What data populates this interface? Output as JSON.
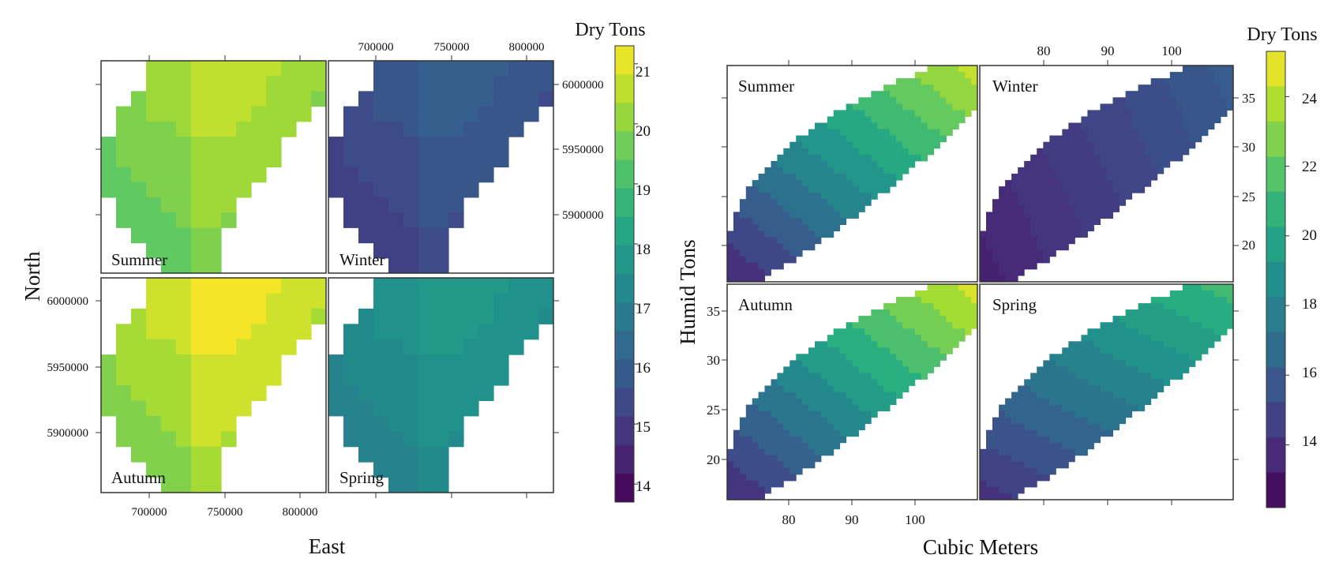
{
  "palette": [
    "#440154",
    "#472d7b",
    "#3b528b",
    "#2c728e",
    "#21908c",
    "#27ad81",
    "#5dc863",
    "#aadc32",
    "#fde725"
  ],
  "chart_data": [
    {
      "type": "heatmap",
      "panels": [
        "Summer",
        "Winter",
        "Autumn",
        "Spring"
      ],
      "xlabel": "East",
      "ylabel": "North",
      "x_ticks": [
        "700000",
        "750000",
        "800000"
      ],
      "y_ticks": [
        "6000000",
        "5950000",
        "5900000"
      ],
      "xlim": [
        670000,
        820000
      ],
      "ylim": [
        5855000,
        6015000
      ],
      "colorbar": {
        "title": "Dry Tons",
        "ticks": [
          "14",
          "15",
          "16",
          "17",
          "18",
          "19",
          "20",
          "21"
        ],
        "range": [
          13.7,
          21.3
        ]
      },
      "panel_ranges": {
        "Summer": [
          17.5,
          20.6
        ],
        "Winter": [
          13.8,
          16.0
        ],
        "Autumn": [
          17.6,
          21.2
        ],
        "Spring": [
          15.8,
          17.8
        ]
      }
    },
    {
      "type": "heatmap",
      "panels": [
        "Summer",
        "Winter",
        "Autumn",
        "Spring"
      ],
      "xlabel": "Cubic Meters",
      "ylabel": "Humid Tons",
      "x_ticks": [
        "80",
        "90",
        "100"
      ],
      "y_ticks_left": [
        "35",
        "30",
        "25",
        "20"
      ],
      "y_ticks_right": [
        "35",
        "30",
        "25",
        "20"
      ],
      "xlim": [
        70,
        110
      ],
      "ylim": [
        16,
        38
      ],
      "colorbar": {
        "title": "Dry Tons",
        "ticks": [
          "14",
          "16",
          "18",
          "20",
          "22",
          "24"
        ],
        "range": [
          12.2,
          25.3
        ]
      },
      "panel_ranges": {
        "Summer": [
          14.0,
          24.2
        ],
        "Winter": [
          13.0,
          16.8
        ],
        "Autumn": [
          14.2,
          24.6
        ],
        "Spring": [
          13.2,
          21.2
        ]
      }
    }
  ]
}
